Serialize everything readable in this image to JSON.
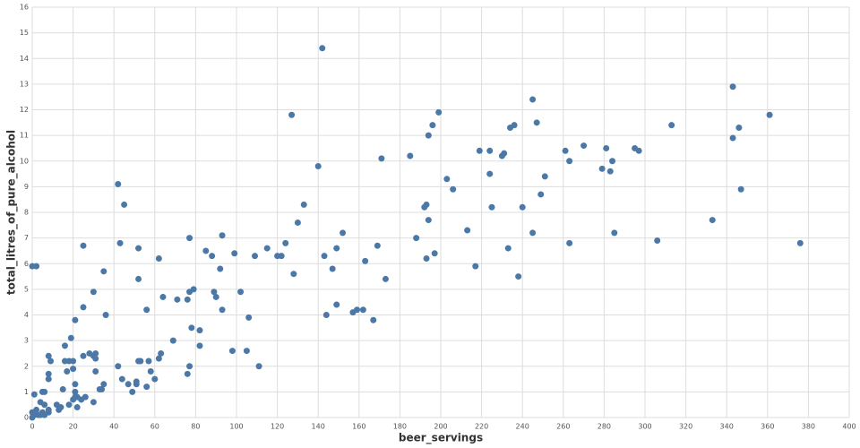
{
  "chart_data": {
    "type": "scatter",
    "x_label": "beer_servings",
    "y_label": "total_litres_of_pure_alcohol",
    "color": "#4c78a8",
    "grid": true,
    "xlim": [
      0,
      400
    ],
    "ylim": [
      0,
      16
    ],
    "xticks": [
      0,
      20,
      40,
      60,
      80,
      100,
      120,
      140,
      160,
      180,
      200,
      220,
      240,
      260,
      280,
      300,
      320,
      340,
      360,
      380,
      400
    ],
    "yticks": [
      0,
      1,
      2,
      3,
      4,
      5,
      6,
      7,
      8,
      9,
      10,
      11,
      12,
      13,
      14,
      15,
      16
    ],
    "x": [
      0,
      2,
      0,
      1,
      0,
      1,
      2,
      3,
      4,
      5,
      6,
      5,
      6,
      4,
      6,
      8,
      8,
      8,
      8,
      9,
      8,
      12,
      13,
      14,
      15,
      16,
      16,
      17,
      18,
      18,
      19,
      20,
      20,
      21,
      20,
      21,
      21,
      21,
      22,
      22,
      24,
      25,
      25,
      25,
      26,
      28,
      30,
      30,
      31,
      31,
      30,
      31,
      33,
      34,
      35,
      35,
      36,
      42,
      43,
      42,
      44,
      45,
      47,
      49,
      51,
      51,
      52,
      52,
      52,
      53,
      56,
      56,
      57,
      58,
      60,
      62,
      62,
      63,
      64,
      69,
      71,
      76,
      76,
      77,
      77,
      77,
      78,
      79,
      82,
      82,
      85,
      88,
      89,
      90,
      92,
      93,
      93,
      98,
      99,
      102,
      105,
      106,
      109,
      111,
      115,
      120,
      122,
      124,
      127,
      128,
      130,
      133,
      140,
      142,
      143,
      144,
      147,
      149,
      149,
      152,
      157,
      159,
      162,
      163,
      167,
      169,
      171,
      173,
      185,
      188,
      192,
      193,
      194,
      194,
      193,
      196,
      197,
      199,
      203,
      206,
      213,
      217,
      219,
      224,
      224,
      225,
      230,
      231,
      233,
      234,
      236,
      238,
      240,
      245,
      245,
      247,
      249,
      251,
      261,
      263,
      263,
      270,
      279,
      281,
      283,
      284,
      285,
      295,
      297,
      306,
      313,
      333,
      343,
      343,
      346,
      347,
      361,
      376
    ],
    "values": [
      5.9,
      5.9,
      0,
      0.1,
      0.2,
      0.9,
      0.3,
      0.1,
      0.6,
      1,
      1,
      0.2,
      0.5,
      0.1,
      0.1,
      0.2,
      0.3,
      1.7,
      2.4,
      2.2,
      1.5,
      0.5,
      0.3,
      0.4,
      1.1,
      2.8,
      2.2,
      1.8,
      0.5,
      2.2,
      3.1,
      1.9,
      2.2,
      3.8,
      0.7,
      1,
      0.8,
      1.3,
      0.8,
      0.4,
      0.7,
      6.7,
      4.3,
      2.4,
      0.8,
      2.5,
      4.9,
      2.4,
      2.3,
      2.5,
      0.6,
      1.8,
      1.1,
      1.1,
      5.7,
      1.3,
      4,
      9.1,
      6.8,
      2,
      1.5,
      8.3,
      1.3,
      1,
      1.3,
      1.4,
      5.4,
      6.6,
      2.2,
      2.2,
      4.2,
      1.2,
      2.2,
      1.8,
      1.5,
      6.2,
      2.3,
      2.5,
      4.7,
      3,
      4.6,
      1.7,
      4.6,
      2,
      7,
      4.9,
      3.5,
      5,
      2.8,
      3.4,
      6.5,
      6.3,
      4.9,
      4.7,
      5.8,
      7.1,
      4.2,
      2.6,
      6.4,
      4.9,
      2.6,
      3.9,
      6.3,
      2,
      6.6,
      6.3,
      6.3,
      6.8,
      11.8,
      5.6,
      7.6,
      8.3,
      9.8,
      14.4,
      6.3,
      4,
      5.8,
      4.4,
      6.6,
      7.2,
      4.1,
      4.2,
      4.2,
      6.1,
      3.8,
      6.7,
      10.1,
      5.4,
      10.2,
      7,
      8.2,
      8.3,
      11,
      7.7,
      6.2,
      11.4,
      6.4,
      11.9,
      9.3,
      8.9,
      7.3,
      5.9,
      10.4,
      9.5,
      10.4,
      8.2,
      10.2,
      10.3,
      6.6,
      11.3,
      11.4,
      5.5,
      8.2,
      7.2,
      12.4,
      11.5,
      8.7,
      9.4,
      10.4,
      10,
      6.8,
      10.6,
      9.7,
      10.5,
      9.6,
      10,
      7.2,
      10.5,
      10.4,
      6.9,
      11.4,
      7.7,
      12.9,
      10.9,
      11.3,
      8.9,
      11.8,
      6.8
    ]
  }
}
